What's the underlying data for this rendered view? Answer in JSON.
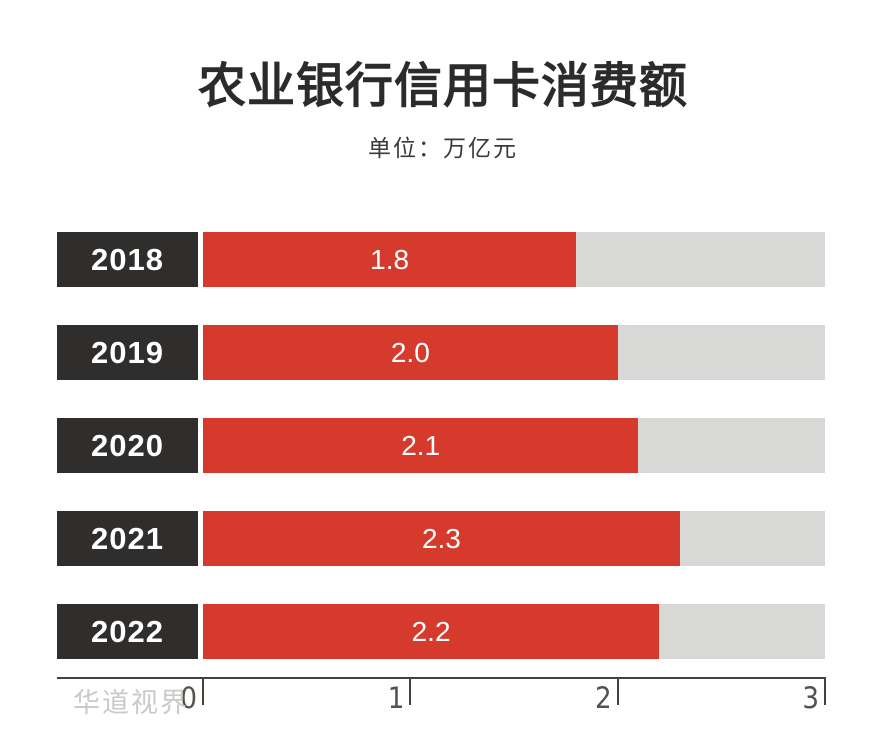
{
  "title": "农业银行信用卡消费额",
  "subtitle": "单位：万亿元",
  "watermark": "华道视界",
  "colors": {
    "bar": "#d63a2d",
    "label_box": "#2f2e2d",
    "track": "#d8d8d7",
    "axis": "#46413d",
    "title_text": "#2b2b2b",
    "subtitle_text": "#3a3a3a",
    "value_text": "#ffffff",
    "tick_text": "#56514c",
    "watermark_text": "#cccac7",
    "bg": "#ffffff"
  },
  "chart_data": {
    "type": "bar",
    "orientation": "horizontal",
    "title": "农业银行信用卡消费额",
    "unit_label": "单位：万亿元",
    "categories": [
      "2018",
      "2019",
      "2020",
      "2021",
      "2022"
    ],
    "values": [
      1.8,
      2.0,
      2.1,
      2.3,
      2.2
    ],
    "value_labels": [
      "1.8",
      "2.0",
      "2.1",
      "2.3",
      "2.2"
    ],
    "xlim": [
      0,
      3
    ],
    "x_ticks": [
      "0",
      "1",
      "2",
      "3"
    ],
    "xlabel": "",
    "ylabel": "",
    "grid": false,
    "legend": false,
    "value_label_position": "inside-center",
    "category_label_style": "dark-box-left"
  }
}
